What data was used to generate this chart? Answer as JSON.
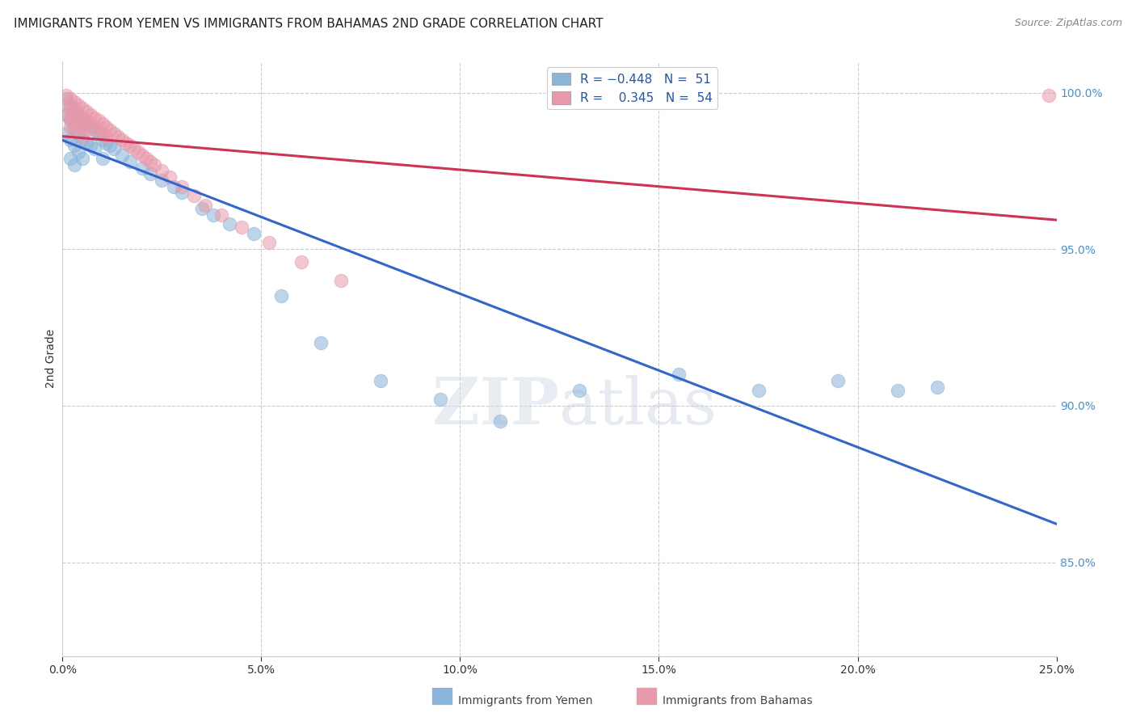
{
  "title": "IMMIGRANTS FROM YEMEN VS IMMIGRANTS FROM BAHAMAS 2ND GRADE CORRELATION CHART",
  "source": "Source: ZipAtlas.com",
  "ylabel": "2nd Grade",
  "ylabel_right_vals": [
    1.0,
    0.95,
    0.9,
    0.85
  ],
  "ylabel_right_labels": [
    "100.0%",
    "95.0%",
    "90.0%",
    "85.0%"
  ],
  "blue_color": "#8ab4d8",
  "pink_color": "#e899aa",
  "blue_line_color": "#3366cc",
  "pink_line_color": "#cc3355",
  "background_color": "#ffffff",
  "grid_color": "#cccccc",
  "xlim": [
    0.0,
    0.25
  ],
  "ylim": [
    0.82,
    1.01
  ],
  "blue_scatter_x": [
    0.001,
    0.001,
    0.001,
    0.002,
    0.002,
    0.002,
    0.002,
    0.003,
    0.003,
    0.003,
    0.003,
    0.004,
    0.004,
    0.004,
    0.005,
    0.005,
    0.005,
    0.006,
    0.006,
    0.007,
    0.007,
    0.008,
    0.008,
    0.009,
    0.01,
    0.01,
    0.011,
    0.012,
    0.013,
    0.015,
    0.017,
    0.02,
    0.022,
    0.025,
    0.028,
    0.03,
    0.035,
    0.038,
    0.042,
    0.048,
    0.055,
    0.065,
    0.08,
    0.095,
    0.11,
    0.13,
    0.155,
    0.175,
    0.195,
    0.21,
    0.22
  ],
  "blue_scatter_y": [
    0.998,
    0.993,
    0.987,
    0.996,
    0.991,
    0.985,
    0.979,
    0.995,
    0.989,
    0.983,
    0.977,
    0.993,
    0.987,
    0.981,
    0.991,
    0.985,
    0.979,
    0.99,
    0.984,
    0.989,
    0.983,
    0.988,
    0.982,
    0.987,
    0.985,
    0.979,
    0.984,
    0.983,
    0.982,
    0.98,
    0.978,
    0.976,
    0.974,
    0.972,
    0.97,
    0.968,
    0.963,
    0.961,
    0.958,
    0.955,
    0.935,
    0.92,
    0.908,
    0.902,
    0.895,
    0.905,
    0.91,
    0.905,
    0.908,
    0.905,
    0.906
  ],
  "pink_scatter_x": [
    0.001,
    0.001,
    0.001,
    0.002,
    0.002,
    0.002,
    0.002,
    0.003,
    0.003,
    0.003,
    0.003,
    0.004,
    0.004,
    0.004,
    0.005,
    0.005,
    0.005,
    0.005,
    0.006,
    0.006,
    0.006,
    0.007,
    0.007,
    0.008,
    0.008,
    0.009,
    0.009,
    0.01,
    0.01,
    0.011,
    0.011,
    0.012,
    0.013,
    0.014,
    0.015,
    0.016,
    0.017,
    0.018,
    0.019,
    0.02,
    0.021,
    0.022,
    0.023,
    0.025,
    0.027,
    0.03,
    0.033,
    0.036,
    0.04,
    0.045,
    0.052,
    0.06,
    0.07,
    0.248
  ],
  "pink_scatter_y": [
    0.999,
    0.996,
    0.993,
    0.998,
    0.995,
    0.992,
    0.989,
    0.997,
    0.994,
    0.991,
    0.988,
    0.996,
    0.993,
    0.99,
    0.995,
    0.992,
    0.989,
    0.986,
    0.994,
    0.991,
    0.988,
    0.993,
    0.99,
    0.992,
    0.989,
    0.991,
    0.988,
    0.99,
    0.987,
    0.989,
    0.986,
    0.988,
    0.987,
    0.986,
    0.985,
    0.984,
    0.983,
    0.982,
    0.981,
    0.98,
    0.979,
    0.978,
    0.977,
    0.975,
    0.973,
    0.97,
    0.967,
    0.964,
    0.961,
    0.957,
    0.952,
    0.946,
    0.94,
    0.999
  ]
}
